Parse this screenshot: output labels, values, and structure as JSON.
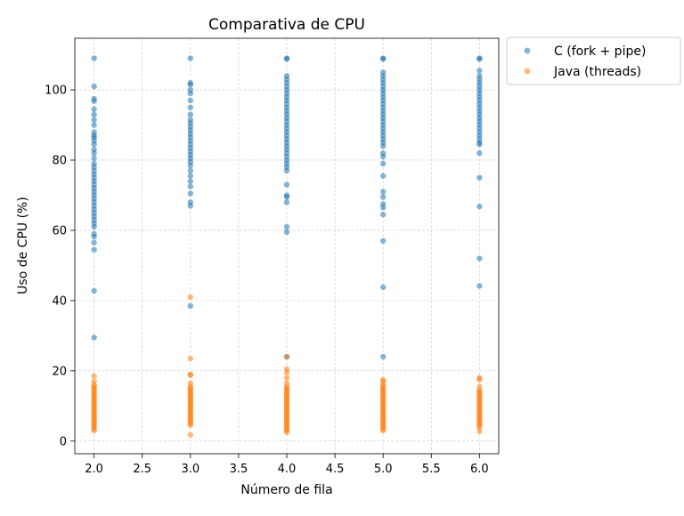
{
  "chart_data": {
    "type": "scatter",
    "title": "Comparativa de CPU",
    "xlabel": "Número de fila",
    "ylabel": "Uso de CPU (%)",
    "xlim": [
      1.8,
      6.2
    ],
    "ylim": [
      -3.6,
      114.7
    ],
    "xticks": [
      2.0,
      2.5,
      3.0,
      3.5,
      4.0,
      4.5,
      5.0,
      5.5,
      6.0
    ],
    "xtick_labels": [
      "2.0",
      "2.5",
      "3.0",
      "3.5",
      "4.0",
      "4.5",
      "5.0",
      "5.5",
      "6.0"
    ],
    "yticks": [
      0,
      20,
      40,
      60,
      80,
      100
    ],
    "ytick_labels": [
      "0",
      "20",
      "40",
      "60",
      "80",
      "100"
    ],
    "grid": true,
    "legend_position": "outside-upper-right",
    "series": [
      {
        "name": "C (fork + pipe)",
        "color": "#1f77b4",
        "points": [
          [
            2,
            109
          ],
          [
            2,
            101
          ],
          [
            2,
            97.5
          ],
          [
            2,
            96.8
          ],
          [
            2,
            94.5
          ],
          [
            2,
            93.0
          ],
          [
            2,
            91.5
          ],
          [
            2,
            90.0
          ],
          [
            2,
            88.0
          ],
          [
            2,
            87.0
          ],
          [
            2,
            86.5
          ],
          [
            2,
            85.5
          ],
          [
            2,
            84.5
          ],
          [
            2,
            83.0
          ],
          [
            2,
            82.0
          ],
          [
            2,
            80.5
          ],
          [
            2,
            79.0
          ],
          [
            2,
            78.0
          ],
          [
            2,
            77.0
          ],
          [
            2,
            76.0
          ],
          [
            2,
            75.0
          ],
          [
            2,
            74.0
          ],
          [
            2,
            73.0
          ],
          [
            2,
            72.0
          ],
          [
            2,
            71.0
          ],
          [
            2,
            70.0
          ],
          [
            2,
            69.0
          ],
          [
            2,
            68.0
          ],
          [
            2,
            67.0
          ],
          [
            2,
            66.0
          ],
          [
            2,
            65.0
          ],
          [
            2,
            64.0
          ],
          [
            2,
            63.0
          ],
          [
            2,
            62.0
          ],
          [
            2,
            61.0
          ],
          [
            2,
            59.0
          ],
          [
            2,
            58.2
          ],
          [
            2,
            56.5
          ],
          [
            2,
            54.5
          ],
          [
            2,
            42.8
          ],
          [
            2,
            29.5
          ],
          [
            3,
            109
          ],
          [
            3,
            102
          ],
          [
            3,
            101.5
          ],
          [
            3,
            100
          ],
          [
            3,
            99
          ],
          [
            3,
            97
          ],
          [
            3,
            95
          ],
          [
            3,
            93
          ],
          [
            3,
            91.5
          ],
          [
            3,
            90.5
          ],
          [
            3,
            89.5
          ],
          [
            3,
            88.5
          ],
          [
            3,
            87.5
          ],
          [
            3,
            86.5
          ],
          [
            3,
            85.5
          ],
          [
            3,
            84.5
          ],
          [
            3,
            83.5
          ],
          [
            3,
            82.5
          ],
          [
            3,
            81.5
          ],
          [
            3,
            80.5
          ],
          [
            3,
            79.5
          ],
          [
            3,
            78.5
          ],
          [
            3,
            77.0
          ],
          [
            3,
            75.5
          ],
          [
            3,
            74.0
          ],
          [
            3,
            72.5
          ],
          [
            3,
            70.5
          ],
          [
            3,
            68.0
          ],
          [
            3,
            67.0
          ],
          [
            3,
            38.5
          ],
          [
            4,
            109
          ],
          [
            4,
            108.8
          ],
          [
            4,
            104
          ],
          [
            4,
            103
          ],
          [
            4,
            102
          ],
          [
            4,
            101
          ],
          [
            4,
            100
          ],
          [
            4,
            99
          ],
          [
            4,
            98
          ],
          [
            4,
            97
          ],
          [
            4,
            96
          ],
          [
            4,
            95
          ],
          [
            4,
            94
          ],
          [
            4,
            93
          ],
          [
            4,
            92
          ],
          [
            4,
            91
          ],
          [
            4,
            90
          ],
          [
            4,
            89
          ],
          [
            4,
            88
          ],
          [
            4,
            87
          ],
          [
            4,
            86
          ],
          [
            4,
            85
          ],
          [
            4,
            84
          ],
          [
            4,
            83
          ],
          [
            4,
            82
          ],
          [
            4,
            81
          ],
          [
            4,
            80
          ],
          [
            4,
            79
          ],
          [
            4,
            78
          ],
          [
            4,
            77
          ],
          [
            4,
            73
          ],
          [
            4,
            70
          ],
          [
            4,
            69.5
          ],
          [
            4,
            68
          ],
          [
            4,
            61
          ],
          [
            4,
            59.5
          ],
          [
            4,
            24
          ],
          [
            5,
            109
          ],
          [
            5,
            108.8
          ],
          [
            5,
            105
          ],
          [
            5,
            104
          ],
          [
            5,
            103
          ],
          [
            5,
            102
          ],
          [
            5,
            101
          ],
          [
            5,
            100
          ],
          [
            5,
            99
          ],
          [
            5,
            98
          ],
          [
            5,
            97
          ],
          [
            5,
            96
          ],
          [
            5,
            95
          ],
          [
            5,
            94
          ],
          [
            5,
            93
          ],
          [
            5,
            92
          ],
          [
            5,
            91
          ],
          [
            5,
            90
          ],
          [
            5,
            89
          ],
          [
            5,
            88
          ],
          [
            5,
            87
          ],
          [
            5,
            86
          ],
          [
            5,
            85
          ],
          [
            5,
            84
          ],
          [
            5,
            82
          ],
          [
            5,
            81
          ],
          [
            5,
            79
          ],
          [
            5,
            75.5
          ],
          [
            5,
            71
          ],
          [
            5,
            69.5
          ],
          [
            5,
            67.5
          ],
          [
            5,
            66.5
          ],
          [
            5,
            64.5
          ],
          [
            5,
            57
          ],
          [
            5,
            43.8
          ],
          [
            5,
            24
          ],
          [
            6,
            109
          ],
          [
            6,
            108.8
          ],
          [
            6,
            105.5
          ],
          [
            6,
            104
          ],
          [
            6,
            103
          ],
          [
            6,
            102
          ],
          [
            6,
            101
          ],
          [
            6,
            100
          ],
          [
            6,
            99
          ],
          [
            6,
            98
          ],
          [
            6,
            97
          ],
          [
            6,
            96
          ],
          [
            6,
            95
          ],
          [
            6,
            94
          ],
          [
            6,
            93
          ],
          [
            6,
            92
          ],
          [
            6,
            91
          ],
          [
            6,
            90
          ],
          [
            6,
            89
          ],
          [
            6,
            88
          ],
          [
            6,
            87
          ],
          [
            6,
            86
          ],
          [
            6,
            85
          ],
          [
            6,
            84.5
          ],
          [
            6,
            82
          ],
          [
            6,
            75
          ],
          [
            6,
            66.8
          ],
          [
            6,
            52
          ],
          [
            6,
            44.2
          ]
        ]
      },
      {
        "name": "Java (threads)",
        "color": "#ff7f0e",
        "points": [
          [
            2,
            18.5
          ],
          [
            2,
            17.0
          ],
          [
            2,
            16.0
          ],
          [
            2,
            15.5
          ],
          [
            2,
            15.0
          ],
          [
            2,
            14.5
          ],
          [
            2,
            14.0
          ],
          [
            2,
            13.5
          ],
          [
            2,
            13.0
          ],
          [
            2,
            12.5
          ],
          [
            2,
            12.0
          ],
          [
            2,
            11.5
          ],
          [
            2,
            11.0
          ],
          [
            2,
            10.5
          ],
          [
            2,
            10.0
          ],
          [
            2,
            9.5
          ],
          [
            2,
            9.0
          ],
          [
            2,
            8.5
          ],
          [
            2,
            8.0
          ],
          [
            2,
            7.5
          ],
          [
            2,
            7.0
          ],
          [
            2,
            6.5
          ],
          [
            2,
            6.0
          ],
          [
            2,
            5.5
          ],
          [
            2,
            5.0
          ],
          [
            2,
            4.5
          ],
          [
            2,
            4.0
          ],
          [
            2,
            3.5
          ],
          [
            2,
            3.0
          ],
          [
            3,
            41.0
          ],
          [
            3,
            23.5
          ],
          [
            3,
            19.0
          ],
          [
            3,
            18.8
          ],
          [
            3,
            16.5
          ],
          [
            3,
            15.5
          ],
          [
            3,
            15.0
          ],
          [
            3,
            14.5
          ],
          [
            3,
            14.0
          ],
          [
            3,
            13.5
          ],
          [
            3,
            13.0
          ],
          [
            3,
            12.5
          ],
          [
            3,
            12.0
          ],
          [
            3,
            11.5
          ],
          [
            3,
            11.0
          ],
          [
            3,
            10.5
          ],
          [
            3,
            10.0
          ],
          [
            3,
            9.5
          ],
          [
            3,
            9.0
          ],
          [
            3,
            8.5
          ],
          [
            3,
            8.0
          ],
          [
            3,
            7.5
          ],
          [
            3,
            7.0
          ],
          [
            3,
            6.5
          ],
          [
            3,
            6.0
          ],
          [
            3,
            5.5
          ],
          [
            3,
            5.0
          ],
          [
            3,
            4.5
          ],
          [
            3,
            1.8
          ],
          [
            4,
            24.0
          ],
          [
            4,
            20.5
          ],
          [
            4,
            19.5
          ],
          [
            4,
            18.0
          ],
          [
            4,
            16.5
          ],
          [
            4,
            15.5
          ],
          [
            4,
            15.0
          ],
          [
            4,
            14.5
          ],
          [
            4,
            14.0
          ],
          [
            4,
            13.5
          ],
          [
            4,
            13.0
          ],
          [
            4,
            12.5
          ],
          [
            4,
            12.0
          ],
          [
            4,
            11.5
          ],
          [
            4,
            11.0
          ],
          [
            4,
            10.5
          ],
          [
            4,
            10.0
          ],
          [
            4,
            9.5
          ],
          [
            4,
            9.0
          ],
          [
            4,
            8.5
          ],
          [
            4,
            8.0
          ],
          [
            4,
            7.5
          ],
          [
            4,
            7.0
          ],
          [
            4,
            6.5
          ],
          [
            4,
            6.0
          ],
          [
            4,
            5.5
          ],
          [
            4,
            5.0
          ],
          [
            4,
            4.5
          ],
          [
            4,
            4.0
          ],
          [
            4,
            3.5
          ],
          [
            4,
            3.0
          ],
          [
            4,
            2.5
          ],
          [
            5,
            17.5
          ],
          [
            5,
            17.0
          ],
          [
            5,
            16.0
          ],
          [
            5,
            15.5
          ],
          [
            5,
            15.0
          ],
          [
            5,
            14.5
          ],
          [
            5,
            14.0
          ],
          [
            5,
            13.5
          ],
          [
            5,
            13.0
          ],
          [
            5,
            12.5
          ],
          [
            5,
            12.0
          ],
          [
            5,
            11.5
          ],
          [
            5,
            11.0
          ],
          [
            5,
            10.5
          ],
          [
            5,
            10.0
          ],
          [
            5,
            9.5
          ],
          [
            5,
            9.0
          ],
          [
            5,
            8.5
          ],
          [
            5,
            8.0
          ],
          [
            5,
            7.5
          ],
          [
            5,
            7.0
          ],
          [
            5,
            6.5
          ],
          [
            5,
            6.0
          ],
          [
            5,
            5.5
          ],
          [
            5,
            5.0
          ],
          [
            5,
            4.5
          ],
          [
            5,
            4.0
          ],
          [
            5,
            3.5
          ],
          [
            5,
            3.0
          ],
          [
            6,
            18.0
          ],
          [
            6,
            17.5
          ],
          [
            6,
            15.5
          ],
          [
            6,
            14.5
          ],
          [
            6,
            14.0
          ],
          [
            6,
            13.5
          ],
          [
            6,
            13.0
          ],
          [
            6,
            12.5
          ],
          [
            6,
            12.0
          ],
          [
            6,
            11.5
          ],
          [
            6,
            11.0
          ],
          [
            6,
            10.5
          ],
          [
            6,
            10.0
          ],
          [
            6,
            9.5
          ],
          [
            6,
            9.0
          ],
          [
            6,
            8.5
          ],
          [
            6,
            8.0
          ],
          [
            6,
            7.5
          ],
          [
            6,
            7.0
          ],
          [
            6,
            6.5
          ],
          [
            6,
            6.0
          ],
          [
            6,
            5.5
          ],
          [
            6,
            5.0
          ],
          [
            6,
            4.5
          ],
          [
            6,
            4.0
          ],
          [
            6,
            2.8
          ]
        ]
      }
    ]
  }
}
